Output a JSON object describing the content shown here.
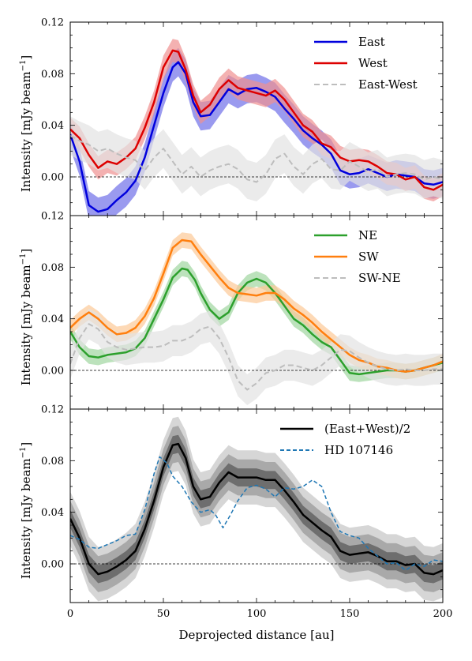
{
  "chart_data": [
    {
      "type": "line",
      "panel": "top",
      "ylabel": "Intensity [mJy beam$^{-1}$]",
      "ylabel_text": "Intensity [mJy beam",
      "ylabel_sup": "−1",
      "ylabel_close": "]",
      "xlim": [
        0,
        200
      ],
      "ylim": [
        -0.03,
        0.12
      ],
      "yticks": [
        "0.12",
        "0.08",
        "0.04",
        "0.00"
      ],
      "ytick_values": [
        0.12,
        0.08,
        0.04,
        0.0
      ],
      "zero_line": true,
      "legend_position": "upper right",
      "series": [
        {
          "name": "East",
          "color": "#0000dd",
          "band_color": "#6f6fe8",
          "band_halfwidth": 0.011,
          "style": "solid",
          "x": [
            0,
            5,
            10,
            15,
            20,
            25,
            30,
            35,
            40,
            45,
            50,
            55,
            58,
            62,
            66,
            70,
            75,
            80,
            85,
            90,
            95,
            100,
            105,
            110,
            115,
            120,
            125,
            130,
            135,
            140,
            145,
            150,
            155,
            160,
            165,
            170,
            175,
            180,
            185,
            190,
            195,
            200
          ],
          "y": [
            0.033,
            0.012,
            -0.022,
            -0.027,
            -0.025,
            -0.018,
            -0.012,
            -0.003,
            0.015,
            0.04,
            0.065,
            0.085,
            0.089,
            0.08,
            0.058,
            0.047,
            0.048,
            0.058,
            0.068,
            0.064,
            0.068,
            0.069,
            0.066,
            0.062,
            0.053,
            0.045,
            0.036,
            0.03,
            0.025,
            0.018,
            0.005,
            0.002,
            0.003,
            0.006,
            0.003,
            0.0,
            0.002,
            0.001,
            0.0,
            -0.005,
            -0.006,
            -0.004
          ]
        },
        {
          "name": "West",
          "color": "#dd0000",
          "band_color": "#f09090",
          "band_halfwidth": 0.009,
          "style": "solid",
          "x": [
            0,
            5,
            10,
            15,
            20,
            25,
            30,
            35,
            40,
            45,
            50,
            55,
            58,
            62,
            66,
            70,
            75,
            80,
            85,
            90,
            95,
            100,
            105,
            110,
            115,
            120,
            125,
            130,
            135,
            140,
            145,
            150,
            155,
            160,
            165,
            170,
            175,
            180,
            185,
            190,
            195,
            200
          ],
          "y": [
            0.037,
            0.03,
            0.017,
            0.007,
            0.012,
            0.01,
            0.015,
            0.022,
            0.038,
            0.058,
            0.085,
            0.098,
            0.097,
            0.083,
            0.063,
            0.05,
            0.056,
            0.068,
            0.075,
            0.069,
            0.067,
            0.065,
            0.063,
            0.067,
            0.06,
            0.05,
            0.04,
            0.035,
            0.026,
            0.023,
            0.015,
            0.012,
            0.013,
            0.012,
            0.008,
            0.003,
            0.002,
            -0.002,
            0.0,
            -0.008,
            -0.01,
            -0.006
          ]
        },
        {
          "name": "East-West",
          "color": "#bdbdbd",
          "band_color": "#e3e3e3",
          "band_halfwidth": 0.015,
          "style": "dashed",
          "x": [
            0,
            5,
            10,
            15,
            20,
            25,
            30,
            35,
            40,
            45,
            50,
            55,
            60,
            65,
            70,
            75,
            80,
            85,
            90,
            95,
            100,
            105,
            110,
            115,
            120,
            125,
            130,
            135,
            140,
            145,
            150,
            155,
            160,
            165,
            170,
            175,
            180,
            185,
            190,
            195,
            200
          ],
          "y": [
            0.032,
            0.028,
            0.025,
            0.02,
            0.022,
            0.018,
            0.015,
            0.013,
            0.005,
            0.015,
            0.022,
            0.012,
            0.002,
            0.008,
            0.0,
            0.005,
            0.008,
            0.01,
            0.006,
            -0.002,
            -0.004,
            0.002,
            0.014,
            0.018,
            0.008,
            0.002,
            0.01,
            0.014,
            0.006,
            0.005,
            0.012,
            0.008,
            0.004,
            0.006,
            0.0,
            0.002,
            0.003,
            0.002,
            -0.002,
            0.0,
            -0.002
          ]
        }
      ]
    },
    {
      "type": "line",
      "panel": "middle",
      "ylabel": "Intensity [mJy beam$^{-1}$]",
      "ylabel_text": "Intensity [mJy beam",
      "ylabel_sup": "−1",
      "ylabel_close": "]",
      "xlim": [
        0,
        200
      ],
      "ylim": [
        -0.03,
        0.12
      ],
      "yticks": [
        "0.12",
        "0.08",
        "0.04",
        "0.00"
      ],
      "ytick_values": [
        0.12,
        0.08,
        0.04,
        0.0
      ],
      "zero_line": true,
      "legend_position": "upper right",
      "series": [
        {
          "name": "NE",
          "color": "#2ca02c",
          "band_color": "#9fd69f",
          "band_halfwidth": 0.006,
          "style": "solid",
          "x": [
            0,
            5,
            10,
            15,
            20,
            25,
            30,
            35,
            40,
            45,
            50,
            55,
            60,
            63,
            67,
            70,
            75,
            80,
            85,
            90,
            95,
            100,
            105,
            110,
            115,
            120,
            125,
            130,
            135,
            140,
            145,
            150,
            155,
            160,
            165,
            170,
            175,
            180,
            185,
            190,
            195,
            200
          ],
          "y": [
            0.03,
            0.018,
            0.011,
            0.01,
            0.012,
            0.013,
            0.014,
            0.017,
            0.025,
            0.04,
            0.055,
            0.072,
            0.079,
            0.078,
            0.07,
            0.06,
            0.047,
            0.04,
            0.045,
            0.06,
            0.068,
            0.071,
            0.068,
            0.06,
            0.05,
            0.04,
            0.035,
            0.028,
            0.022,
            0.018,
            0.008,
            -0.002,
            -0.003,
            -0.002,
            -0.001,
            0.0,
            0.0,
            -0.001,
            0.0,
            0.002,
            0.004,
            0.006
          ]
        },
        {
          "name": "SW",
          "color": "#ff7f0e",
          "band_color": "#fcc997",
          "band_halfwidth": 0.006,
          "style": "solid",
          "x": [
            0,
            5,
            10,
            15,
            20,
            25,
            30,
            35,
            40,
            45,
            50,
            55,
            60,
            65,
            70,
            75,
            80,
            85,
            90,
            95,
            100,
            105,
            110,
            115,
            120,
            125,
            130,
            135,
            140,
            145,
            150,
            155,
            160,
            165,
            170,
            175,
            180,
            185,
            190,
            195,
            200
          ],
          "y": [
            0.033,
            0.04,
            0.045,
            0.04,
            0.033,
            0.028,
            0.029,
            0.033,
            0.042,
            0.056,
            0.075,
            0.095,
            0.101,
            0.1,
            0.09,
            0.081,
            0.072,
            0.064,
            0.06,
            0.059,
            0.058,
            0.06,
            0.06,
            0.055,
            0.048,
            0.043,
            0.037,
            0.03,
            0.024,
            0.018,
            0.012,
            0.008,
            0.006,
            0.003,
            0.002,
            0.0,
            -0.001,
            0.0,
            0.002,
            0.004,
            0.007
          ]
        },
        {
          "name": "SW-NE",
          "color": "#bdbdbd",
          "band_color": "#e3e3e3",
          "band_halfwidth": 0.012,
          "style": "dashed",
          "x": [
            0,
            5,
            10,
            15,
            20,
            25,
            30,
            35,
            40,
            45,
            50,
            55,
            60,
            65,
            70,
            75,
            80,
            85,
            90,
            95,
            100,
            105,
            110,
            115,
            120,
            125,
            130,
            135,
            140,
            145,
            150,
            155,
            160,
            165,
            170,
            175,
            180,
            185,
            190,
            195,
            200
          ],
          "y": [
            0.005,
            0.025,
            0.036,
            0.032,
            0.022,
            0.018,
            0.016,
            0.017,
            0.018,
            0.018,
            0.019,
            0.023,
            0.023,
            0.026,
            0.032,
            0.034,
            0.025,
            0.01,
            -0.008,
            -0.015,
            -0.01,
            -0.002,
            0.0,
            0.004,
            0.004,
            0.002,
            0.0,
            0.004,
            0.01,
            0.016,
            0.015,
            0.01,
            0.006,
            0.003,
            0.001,
            0.0,
            0.001,
            0.0,
            0.0,
            0.001,
            0.001
          ]
        }
      ]
    },
    {
      "type": "line",
      "panel": "bottom",
      "ylabel": "Intensity [mJy beam$^{-1}$]",
      "ylabel_text": "Intensity [mJy beam",
      "ylabel_sup": "−1",
      "ylabel_close": "]",
      "xlabel": "Deprojected distance [au]",
      "xlim": [
        0,
        200
      ],
      "ylim": [
        -0.03,
        0.12
      ],
      "xticks": [
        "0",
        "50",
        "100",
        "150",
        "200"
      ],
      "xtick_values": [
        0,
        50,
        100,
        150,
        200
      ],
      "yticks": [
        "0.12",
        "0.08",
        "0.04",
        "0.00"
      ],
      "ytick_values": [
        0.12,
        0.08,
        0.04,
        0.0
      ],
      "zero_line": true,
      "legend_position": "upper right",
      "series": [
        {
          "name": "(East+West)/2",
          "color": "#000000",
          "bands": [
            {
              "color": "#6e6e6e",
              "halfwidth": 0.007
            },
            {
              "color": "#a9a9a9",
              "halfwidth": 0.014
            },
            {
              "color": "#d6d6d6",
              "halfwidth": 0.021
            }
          ],
          "style": "solid",
          "x": [
            0,
            5,
            10,
            15,
            20,
            25,
            30,
            35,
            40,
            45,
            50,
            55,
            58,
            62,
            66,
            70,
            75,
            80,
            85,
            90,
            95,
            100,
            105,
            110,
            115,
            120,
            125,
            130,
            135,
            140,
            145,
            150,
            155,
            160,
            165,
            170,
            175,
            180,
            185,
            190,
            195,
            200
          ],
          "y": [
            0.035,
            0.02,
            0.0,
            -0.008,
            -0.006,
            -0.002,
            0.003,
            0.01,
            0.027,
            0.049,
            0.075,
            0.092,
            0.093,
            0.082,
            0.06,
            0.05,
            0.052,
            0.063,
            0.071,
            0.067,
            0.067,
            0.067,
            0.065,
            0.065,
            0.057,
            0.048,
            0.038,
            0.032,
            0.026,
            0.021,
            0.01,
            0.007,
            0.008,
            0.009,
            0.006,
            0.002,
            0.002,
            -0.001,
            0.0,
            -0.007,
            -0.008,
            -0.005
          ]
        },
        {
          "name": "HD 107146",
          "color": "#1f77b4",
          "style": "dashed",
          "x": [
            0,
            5,
            10,
            15,
            20,
            25,
            30,
            35,
            40,
            45,
            48,
            52,
            55,
            60,
            65,
            70,
            75,
            78,
            82,
            86,
            90,
            95,
            100,
            105,
            110,
            115,
            120,
            125,
            130,
            135,
            140,
            145,
            150,
            155,
            160,
            165,
            170,
            175,
            180,
            185,
            190,
            195,
            200
          ],
          "y": [
            0.022,
            0.019,
            0.013,
            0.012,
            0.015,
            0.018,
            0.022,
            0.023,
            0.042,
            0.07,
            0.083,
            0.078,
            0.068,
            0.06,
            0.048,
            0.04,
            0.042,
            0.038,
            0.028,
            0.038,
            0.049,
            0.059,
            0.061,
            0.058,
            0.052,
            0.059,
            0.058,
            0.06,
            0.065,
            0.06,
            0.04,
            0.025,
            0.022,
            0.02,
            0.012,
            0.006,
            0.0,
            0.001,
            -0.005,
            0.0,
            -0.002,
            0.003,
            0.002
          ]
        }
      ]
    }
  ]
}
